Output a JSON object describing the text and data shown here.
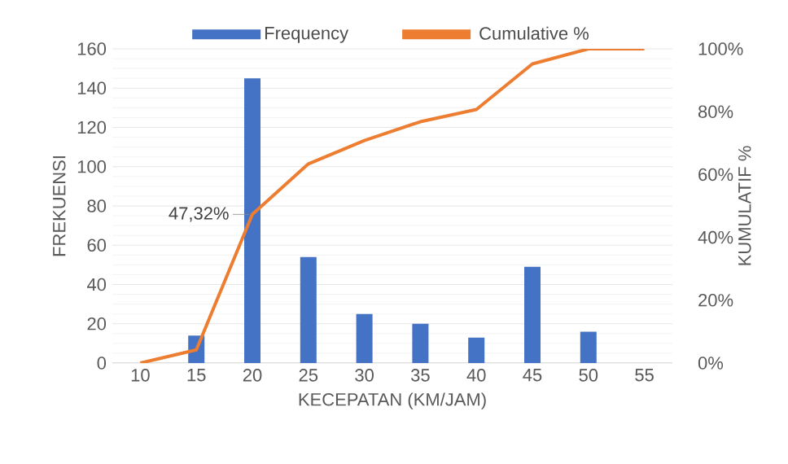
{
  "chart_data": {
    "type": "bar",
    "xlabel": "KECEPATAN (KM/JAM)",
    "ylabel": "FREKUENSI",
    "y2label": "KUMULATIF %",
    "categories": [
      "10",
      "15",
      "20",
      "25",
      "30",
      "35",
      "40",
      "45",
      "50",
      "55"
    ],
    "series": [
      {
        "name": "Frequency",
        "color": "#4472c4",
        "values": [
          null,
          14,
          145,
          54,
          25,
          20,
          13,
          49,
          16,
          null
        ]
      },
      {
        "name": "Cumulative %",
        "type": "line",
        "axis": "y2",
        "color": "#ed7d31",
        "values": [
          0,
          4.2,
          47.32,
          63.4,
          70.8,
          76.8,
          80.7,
          95.2,
          100,
          100
        ],
        "value_labels": [
          null,
          null,
          "47,32%",
          null,
          null,
          null,
          null,
          null,
          null,
          null
        ]
      }
    ],
    "ylim": [
      0,
      160
    ],
    "yticks": [
      0,
      20,
      40,
      60,
      80,
      100,
      120,
      140,
      160
    ],
    "y2lim": [
      0,
      100
    ],
    "y2ticks": [
      {
        "value": 0,
        "label": "0%"
      },
      {
        "value": 20,
        "label": "20%"
      },
      {
        "value": 40,
        "label": "40%"
      },
      {
        "value": 60,
        "label": "60%"
      },
      {
        "value": 80,
        "label": "80%"
      },
      {
        "value": 100,
        "label": "100%"
      }
    ],
    "grid": "y",
    "legend": "top"
  }
}
